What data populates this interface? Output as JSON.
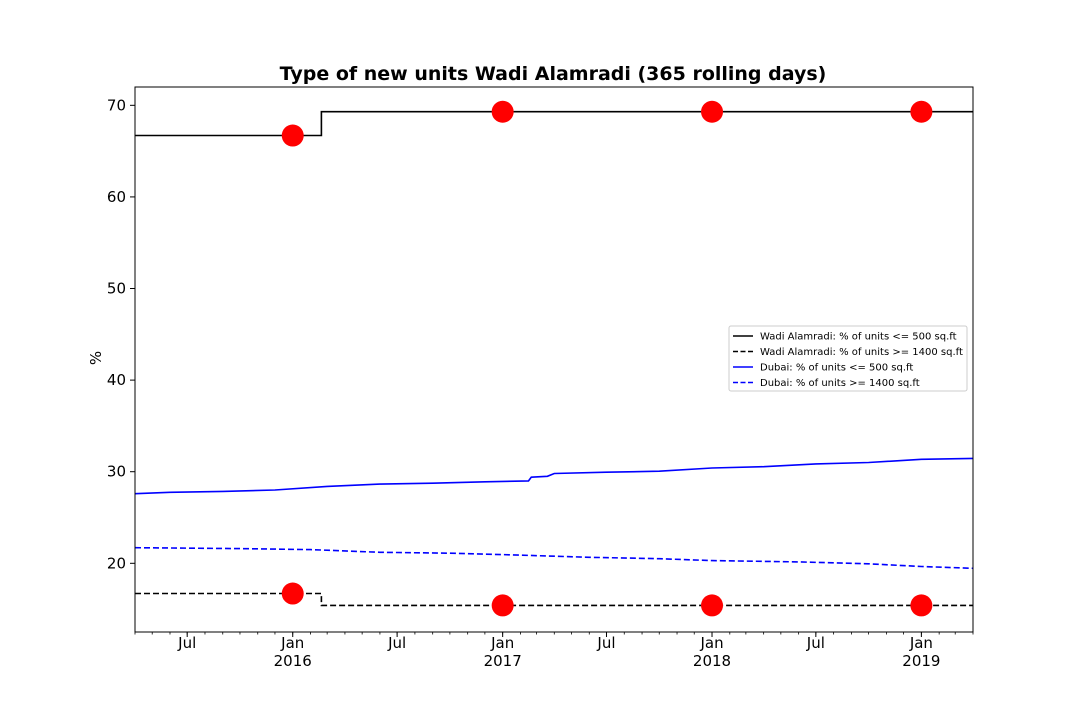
{
  "chart_data": {
    "type": "line",
    "title": "Type of new units Wadi Alamradi (365 rolling days)",
    "xlabel": "",
    "ylabel": "%",
    "xlim": [
      "2015-04-01",
      "2019-04-01"
    ],
    "ylim": [
      12.5,
      72
    ],
    "y_ticks": [
      20,
      30,
      40,
      50,
      60,
      70
    ],
    "x_ticks": [
      {
        "date": "2015-07-01",
        "label": "Jul",
        "sublabel": ""
      },
      {
        "date": "2016-01-01",
        "label": "Jan",
        "sublabel": "2016"
      },
      {
        "date": "2016-07-01",
        "label": "Jul",
        "sublabel": ""
      },
      {
        "date": "2017-01-01",
        "label": "Jan",
        "sublabel": "2017"
      },
      {
        "date": "2017-07-01",
        "label": "Jul",
        "sublabel": ""
      },
      {
        "date": "2018-01-01",
        "label": "Jan",
        "sublabel": "2018"
      },
      {
        "date": "2018-07-01",
        "label": "Jul",
        "sublabel": ""
      },
      {
        "date": "2019-01-01",
        "label": "Jan",
        "sublabel": "2019"
      }
    ],
    "grid": false,
    "legend_position": "center-right",
    "series": [
      {
        "name": "Wadi Alamradi: % of units <= 500 sq.ft",
        "color": "#000000",
        "style": "solid",
        "step": true,
        "points": [
          [
            "2015-04-01",
            66.7
          ],
          [
            "2016-02-20",
            66.7
          ],
          [
            "2016-02-20",
            69.3
          ],
          [
            "2019-04-01",
            69.3
          ]
        ]
      },
      {
        "name": "Wadi Alamradi: % of units >= 1400 sq.ft",
        "color": "#000000",
        "style": "dashed",
        "step": true,
        "points": [
          [
            "2015-04-01",
            16.7
          ],
          [
            "2016-02-20",
            16.7
          ],
          [
            "2016-02-20",
            15.4
          ],
          [
            "2019-04-01",
            15.4
          ]
        ]
      },
      {
        "name": "Dubai: % of units <= 500 sq.ft",
        "color": "#0000ff",
        "style": "solid",
        "step": false,
        "points": [
          [
            "2015-04-01",
            27.6
          ],
          [
            "2015-06-01",
            27.75
          ],
          [
            "2015-09-01",
            27.85
          ],
          [
            "2015-12-01",
            28.0
          ],
          [
            "2016-03-01",
            28.4
          ],
          [
            "2016-06-01",
            28.65
          ],
          [
            "2016-09-01",
            28.75
          ],
          [
            "2016-12-01",
            28.9
          ],
          [
            "2017-02-15",
            29.0
          ],
          [
            "2017-02-20",
            29.4
          ],
          [
            "2017-03-20",
            29.5
          ],
          [
            "2017-04-01",
            29.8
          ],
          [
            "2017-07-01",
            29.95
          ],
          [
            "2017-10-01",
            30.05
          ],
          [
            "2018-01-01",
            30.4
          ],
          [
            "2018-04-01",
            30.55
          ],
          [
            "2018-07-01",
            30.85
          ],
          [
            "2018-10-01",
            31.0
          ],
          [
            "2019-01-01",
            31.35
          ],
          [
            "2019-04-01",
            31.45
          ]
        ]
      },
      {
        "name": "Dubai: % of units >= 1400 sq.ft",
        "color": "#0000ff",
        "style": "dashed",
        "step": false,
        "points": [
          [
            "2015-04-01",
            21.7
          ],
          [
            "2015-10-01",
            21.6
          ],
          [
            "2016-02-01",
            21.5
          ],
          [
            "2016-06-01",
            21.2
          ],
          [
            "2016-10-01",
            21.1
          ],
          [
            "2017-01-01",
            20.95
          ],
          [
            "2017-06-01",
            20.65
          ],
          [
            "2017-10-01",
            20.5
          ],
          [
            "2018-01-01",
            20.3
          ],
          [
            "2018-06-01",
            20.15
          ],
          [
            "2018-10-01",
            19.95
          ],
          [
            "2019-01-01",
            19.65
          ],
          [
            "2019-04-01",
            19.45
          ]
        ]
      }
    ],
    "markers": {
      "color": "#ff0000",
      "points": [
        [
          "2016-01-01",
          66.7
        ],
        [
          "2017-01-01",
          69.3
        ],
        [
          "2018-01-01",
          69.3
        ],
        [
          "2019-01-01",
          69.3
        ],
        [
          "2016-01-01",
          16.7
        ],
        [
          "2017-01-01",
          15.4
        ],
        [
          "2018-01-01",
          15.4
        ],
        [
          "2019-01-01",
          15.4
        ]
      ]
    }
  }
}
